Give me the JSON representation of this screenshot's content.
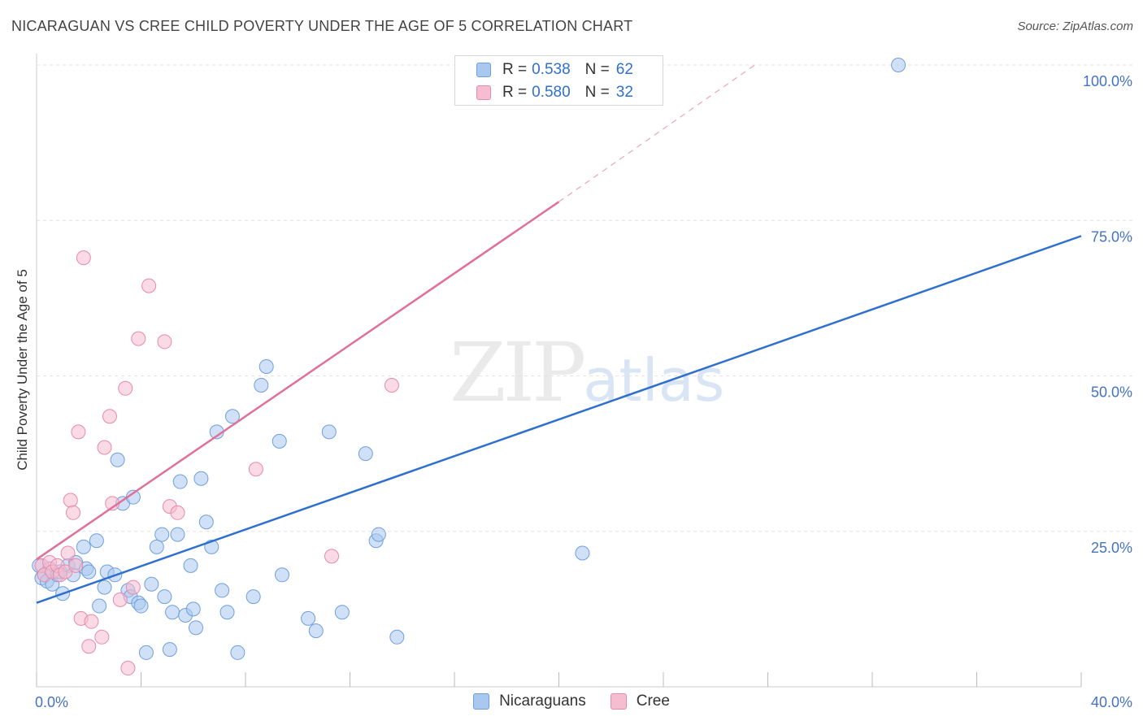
{
  "header": {
    "title": "NICARAGUAN VS CREE CHILD POVERTY UNDER THE AGE OF 5 CORRELATION CHART",
    "source": "Source: ZipAtlas.com"
  },
  "watermark": {
    "zip": "ZIP",
    "atlas": "atlas"
  },
  "legend": {
    "rows": [
      {
        "r_label": "R =",
        "r_value": "0.538",
        "n_label": "N =",
        "n_value": "62"
      },
      {
        "r_label": "R =",
        "r_value": "0.580",
        "n_label": "N =",
        "n_value": "32"
      }
    ]
  },
  "bottom_legend": {
    "series1": "Nicaraguans",
    "series2": "Cree"
  },
  "colors": {
    "blue_fill": "#a9c8f0",
    "blue_stroke": "#6f9fdc",
    "blue_line": "#2f6fce",
    "pink_fill": "#f6bcd0",
    "pink_stroke": "#e88aab",
    "pink_line": "#e07099",
    "tick": "#4472c4",
    "grid": "#e3e3e3"
  },
  "chart_data": {
    "type": "scatter",
    "title": "NICARAGUAN VS CREE CHILD POVERTY UNDER THE AGE OF 5 CORRELATION CHART",
    "xlabel": "",
    "ylabel": "Child Poverty Under the Age of 5",
    "xlim": [
      0,
      40
    ],
    "ylim": [
      0,
      100
    ],
    "x_tick_labels": [
      "0.0%",
      "40.0%"
    ],
    "y_tick_values": [
      25,
      50,
      75,
      100
    ],
    "y_tick_labels": [
      "25.0%",
      "50.0%",
      "75.0%",
      "100.0%"
    ],
    "series": [
      {
        "name": "Nicaraguans",
        "R": 0.538,
        "N": 62,
        "trend": {
          "x0": 0,
          "y0": 13.5,
          "x1": 40,
          "y1": 72.5,
          "dashed_to": null
        },
        "points": [
          [
            0.1,
            19.5
          ],
          [
            0.2,
            17.5
          ],
          [
            0.3,
            18.0
          ],
          [
            0.4,
            17.0
          ],
          [
            0.5,
            19.0
          ],
          [
            0.6,
            16.5
          ],
          [
            0.8,
            18.0
          ],
          [
            0.9,
            18.5
          ],
          [
            1.0,
            15.0
          ],
          [
            1.2,
            19.5
          ],
          [
            1.4,
            18.0
          ],
          [
            1.5,
            20.0
          ],
          [
            1.8,
            22.5
          ],
          [
            1.9,
            19.0
          ],
          [
            2.0,
            18.5
          ],
          [
            2.3,
            23.5
          ],
          [
            2.4,
            13.0
          ],
          [
            2.6,
            16.0
          ],
          [
            2.7,
            18.5
          ],
          [
            3.0,
            18.0
          ],
          [
            3.1,
            36.5
          ],
          [
            3.3,
            29.5
          ],
          [
            3.5,
            15.5
          ],
          [
            3.6,
            14.5
          ],
          [
            3.7,
            30.5
          ],
          [
            3.9,
            13.5
          ],
          [
            4.0,
            13.0
          ],
          [
            4.2,
            5.5
          ],
          [
            4.4,
            16.5
          ],
          [
            4.6,
            22.5
          ],
          [
            4.8,
            24.5
          ],
          [
            4.9,
            14.5
          ],
          [
            5.1,
            6.0
          ],
          [
            5.2,
            12.0
          ],
          [
            5.4,
            24.5
          ],
          [
            5.5,
            33.0
          ],
          [
            5.7,
            11.5
          ],
          [
            5.9,
            19.5
          ],
          [
            6.0,
            12.5
          ],
          [
            6.1,
            9.5
          ],
          [
            6.3,
            33.5
          ],
          [
            6.5,
            26.5
          ],
          [
            6.7,
            22.5
          ],
          [
            6.9,
            41.0
          ],
          [
            7.1,
            15.5
          ],
          [
            7.3,
            12.0
          ],
          [
            7.5,
            43.5
          ],
          [
            7.7,
            5.5
          ],
          [
            8.3,
            14.5
          ],
          [
            8.6,
            48.5
          ],
          [
            8.8,
            51.5
          ],
          [
            9.3,
            39.5
          ],
          [
            9.4,
            18.0
          ],
          [
            10.4,
            11.0
          ],
          [
            10.7,
            9.0
          ],
          [
            11.2,
            41.0
          ],
          [
            11.7,
            12.0
          ],
          [
            12.6,
            37.5
          ],
          [
            13.0,
            23.5
          ],
          [
            13.1,
            24.5
          ],
          [
            13.8,
            8.0
          ],
          [
            20.9,
            21.5
          ],
          [
            33.0,
            100.0
          ]
        ]
      },
      {
        "name": "Cree",
        "R": 0.58,
        "N": 32,
        "trend": {
          "x0": 0,
          "y0": 20.5,
          "x1": 20,
          "y1": 78.0,
          "dashed_to": {
            "x": 27.5,
            "y": 100
          }
        },
        "points": [
          [
            0.2,
            19.5
          ],
          [
            0.3,
            18.0
          ],
          [
            0.5,
            20.0
          ],
          [
            0.6,
            18.5
          ],
          [
            0.8,
            19.5
          ],
          [
            0.9,
            18.0
          ],
          [
            1.1,
            18.5
          ],
          [
            1.2,
            21.5
          ],
          [
            1.3,
            30.0
          ],
          [
            1.4,
            28.0
          ],
          [
            1.5,
            19.5
          ],
          [
            1.6,
            41.0
          ],
          [
            1.7,
            11.0
          ],
          [
            1.8,
            69.0
          ],
          [
            2.0,
            6.5
          ],
          [
            2.1,
            10.5
          ],
          [
            2.5,
            8.0
          ],
          [
            2.6,
            38.5
          ],
          [
            2.8,
            43.5
          ],
          [
            2.9,
            29.5
          ],
          [
            3.2,
            14.0
          ],
          [
            3.4,
            48.0
          ],
          [
            3.5,
            3.0
          ],
          [
            3.7,
            16.0
          ],
          [
            3.9,
            56.0
          ],
          [
            4.3,
            64.5
          ],
          [
            4.9,
            55.5
          ],
          [
            5.1,
            29.0
          ],
          [
            5.4,
            28.0
          ],
          [
            8.4,
            35.0
          ],
          [
            11.3,
            21.0
          ],
          [
            13.6,
            48.5
          ]
        ]
      }
    ]
  }
}
